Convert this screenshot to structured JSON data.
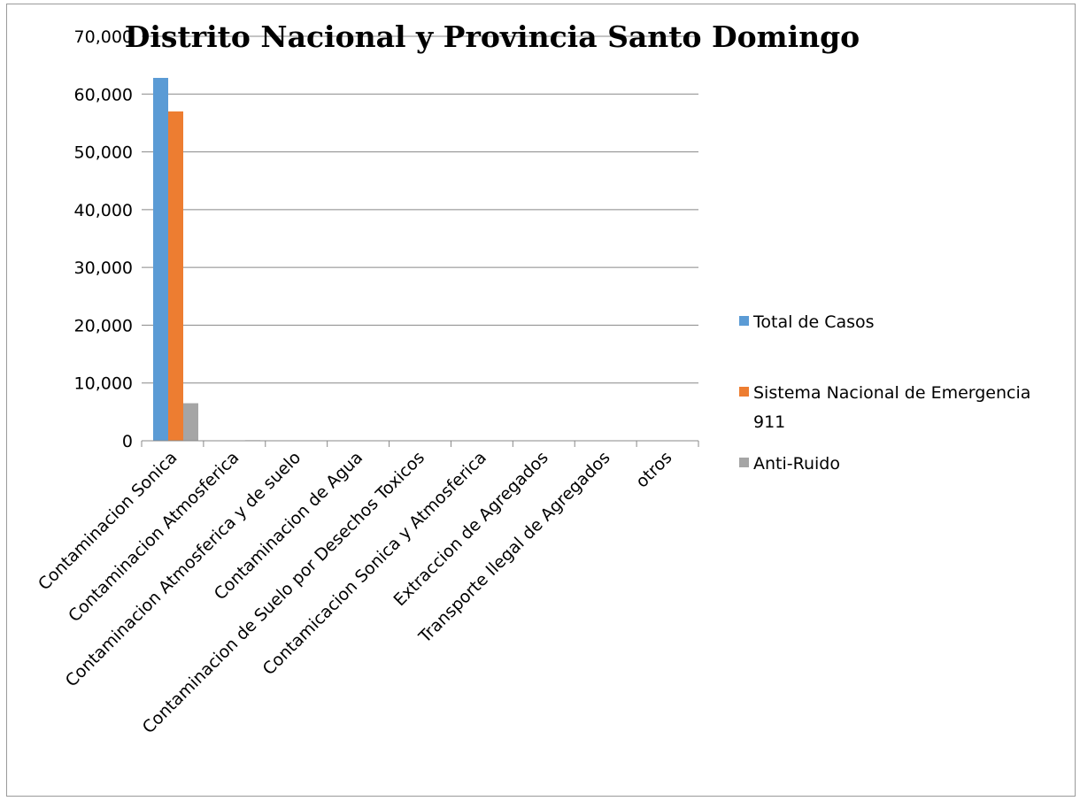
{
  "chart_data": {
    "type": "bar",
    "title": "Distrito Nacional y Provincia Santo Domingo",
    "xlabel": "",
    "ylabel": "",
    "ylim": [
      0,
      70000
    ],
    "yticks": [
      0,
      10000,
      20000,
      30000,
      40000,
      50000,
      60000,
      70000
    ],
    "ytick_labels": [
      "0",
      "10,000",
      "20,000",
      "30,000",
      "40,000",
      "50,000",
      "60,000",
      "70,000"
    ],
    "grid": true,
    "legend_position": "right",
    "categories": [
      "Contaminacion Sonica",
      "Contaminacion Atmosferica",
      "Contaminacion Atmosferica y de suelo",
      "Contaminacion de Agua",
      "Contaminacion de Suelo por Desechos Toxicos",
      "Contamicacion Sonica y Atmosferica",
      "Extraccion de Agregados",
      "Transporte Ilegal de Agregados",
      "otros"
    ],
    "series": [
      {
        "name": "Total de Casos",
        "color": "#5b9bd5",
        "values": [
          62800,
          40,
          5,
          5,
          3,
          3,
          2,
          2,
          5
        ]
      },
      {
        "name": "Sistema Nacional de Emergencia 911",
        "legend_lines": [
          "Sistema Nacional de Emergencia",
          "911"
        ],
        "color": "#ed7d31",
        "values": [
          57000,
          30,
          3,
          3,
          2,
          2,
          1,
          1,
          3
        ]
      },
      {
        "name": "Anti-Ruido",
        "color": "#a5a5a5",
        "values": [
          6500,
          100,
          2,
          2,
          1,
          1,
          1,
          1,
          2
        ]
      }
    ]
  }
}
